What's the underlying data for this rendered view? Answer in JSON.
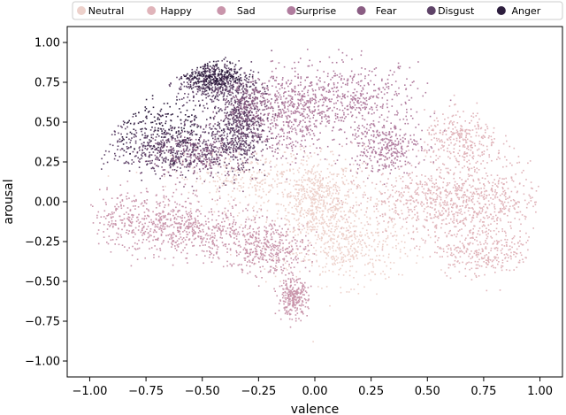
{
  "chart_data": {
    "type": "scatter",
    "title": "",
    "xlabel": "valence",
    "ylabel": "arousal",
    "xlim": [
      -1.1,
      1.1
    ],
    "ylim": [
      -1.1,
      1.1
    ],
    "xticks": [
      -1.0,
      -0.75,
      -0.5,
      -0.25,
      0.0,
      0.25,
      0.5,
      0.75,
      1.0
    ],
    "yticks": [
      -1.0,
      -0.75,
      -0.5,
      -0.25,
      0.0,
      0.25,
      0.5,
      0.75,
      1.0
    ],
    "xtick_labels": [
      "−1.00",
      "−0.75",
      "−0.50",
      "−0.25",
      "0.00",
      "0.25",
      "0.50",
      "0.75",
      "1.00"
    ],
    "ytick_labels": [
      "−1.00",
      "−0.75",
      "−0.50",
      "−0.25",
      "0.00",
      "0.25",
      "0.50",
      "0.75",
      "1.00"
    ],
    "grid": false,
    "legend_position": "top",
    "series": [
      {
        "name": "Neutral",
        "color": "#edd1cb",
        "regions": [
          {
            "cx": 0.0,
            "cy": 0.0,
            "rx": 0.15,
            "ry": 0.25,
            "density": 0.9
          },
          {
            "cx": 0.1,
            "cy": -0.1,
            "rx": 0.35,
            "ry": 0.35,
            "density": 0.7
          },
          {
            "cx": -0.3,
            "cy": 0.15,
            "rx": 0.3,
            "ry": 0.18,
            "density": 0.6
          },
          {
            "cx": 0.15,
            "cy": -0.3,
            "rx": 0.2,
            "ry": 0.2,
            "density": 0.5
          }
        ]
      },
      {
        "name": "Happy",
        "color": "#e0b4ba",
        "regions": [
          {
            "cx": 0.72,
            "cy": 0.05,
            "rx": 0.3,
            "ry": 0.28,
            "density": 0.95
          },
          {
            "cx": 0.5,
            "cy": 0.0,
            "rx": 0.35,
            "ry": 0.18,
            "density": 0.8
          },
          {
            "cx": 0.75,
            "cy": -0.3,
            "rx": 0.2,
            "ry": 0.15,
            "density": 0.6
          },
          {
            "cx": 0.65,
            "cy": 0.4,
            "rx": 0.15,
            "ry": 0.15,
            "density": 0.5
          }
        ]
      },
      {
        "name": "Sad",
        "color": "#c995ab",
        "regions": [
          {
            "cx": -0.75,
            "cy": -0.12,
            "rx": 0.3,
            "ry": 0.18,
            "density": 0.95
          },
          {
            "cx": -0.45,
            "cy": -0.2,
            "rx": 0.25,
            "ry": 0.15,
            "density": 0.7
          },
          {
            "cx": -0.2,
            "cy": -0.3,
            "rx": 0.15,
            "ry": 0.15,
            "density": 0.6
          },
          {
            "cx": -0.1,
            "cy": -0.6,
            "rx": 0.06,
            "ry": 0.1,
            "density": 0.5
          }
        ]
      },
      {
        "name": "Surprise",
        "color": "#b07c9e",
        "regions": [
          {
            "cx": 0.15,
            "cy": 0.65,
            "rx": 0.3,
            "ry": 0.2,
            "density": 0.95
          },
          {
            "cx": -0.1,
            "cy": 0.55,
            "rx": 0.15,
            "ry": 0.25,
            "density": 0.8
          },
          {
            "cx": 0.3,
            "cy": 0.35,
            "rx": 0.15,
            "ry": 0.15,
            "density": 0.6
          }
        ]
      },
      {
        "name": "Fear",
        "color": "#8a5d83",
        "regions": [
          {
            "cx": -0.5,
            "cy": 0.3,
            "rx": 0.22,
            "ry": 0.15,
            "density": 0.7
          },
          {
            "cx": -0.3,
            "cy": 0.6,
            "rx": 0.1,
            "ry": 0.15,
            "density": 0.6
          }
        ]
      },
      {
        "name": "Disgust",
        "color": "#5e4368",
        "regions": [
          {
            "cx": -0.65,
            "cy": 0.35,
            "rx": 0.25,
            "ry": 0.15,
            "density": 0.9
          },
          {
            "cx": -0.45,
            "cy": 0.75,
            "rx": 0.15,
            "ry": 0.12,
            "density": 0.9
          },
          {
            "cx": -0.35,
            "cy": 0.45,
            "rx": 0.1,
            "ry": 0.2,
            "density": 0.8
          }
        ]
      },
      {
        "name": "Anger",
        "color": "#2d1e3e",
        "regions": [
          {
            "cx": -0.45,
            "cy": 0.8,
            "rx": 0.12,
            "ry": 0.08,
            "density": 0.4
          },
          {
            "cx": -0.7,
            "cy": 0.5,
            "rx": 0.2,
            "ry": 0.15,
            "density": 0.3
          }
        ]
      }
    ],
    "boundary": {
      "center": [
        0.0,
        0.0
      ],
      "radius": 1.0
    }
  }
}
